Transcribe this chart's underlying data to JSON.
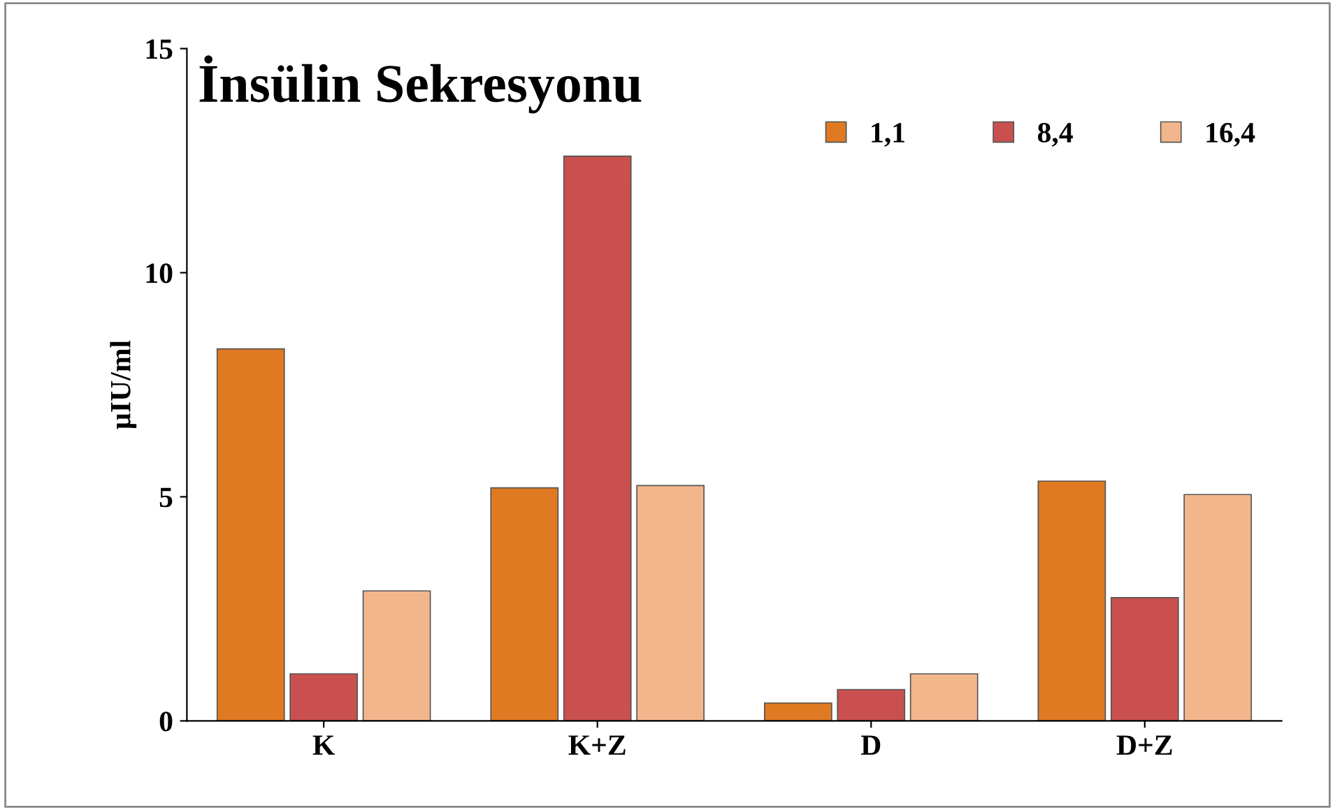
{
  "chart_data": {
    "type": "bar",
    "title": "İnsülin Sekresyonu",
    "ylabel": "µIU/ml",
    "categories": [
      "K",
      "K+Z",
      "D",
      "D+Z"
    ],
    "series": [
      {
        "name": "1,1",
        "color": "#e07a22",
        "values": [
          8.3,
          5.2,
          0.4,
          5.35
        ]
      },
      {
        "name": "8,4",
        "color": "#c9504e",
        "values": [
          1.05,
          12.6,
          0.7,
          2.75
        ]
      },
      {
        "name": "16,4",
        "color": "#f2b68c",
        "values": [
          2.9,
          5.25,
          1.05,
          5.05
        ]
      }
    ],
    "ylim": [
      0,
      15
    ],
    "yticks": [
      0,
      5,
      10,
      15
    ],
    "grid": false,
    "legend": "top right"
  }
}
